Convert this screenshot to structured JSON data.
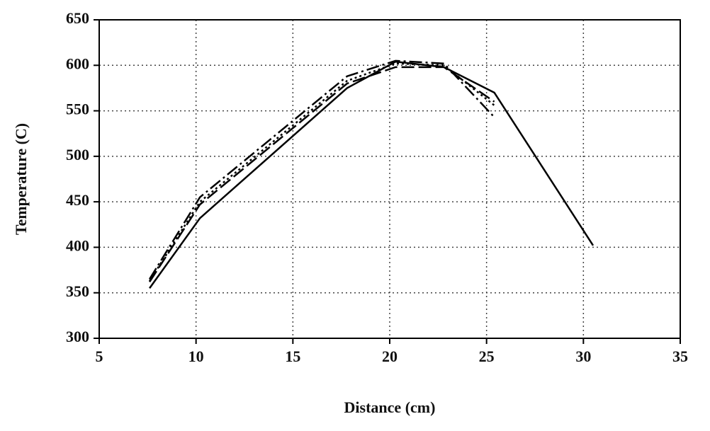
{
  "chart_data": {
    "type": "line",
    "x_label": "Distance (cm)",
    "y_label": "Temperature (C)",
    "series": [
      {
        "color": "#000000",
        "dash": "solid",
        "x": [
          7.6,
          10.2,
          17.8,
          20.3,
          22.8,
          25.4,
          30.5
        ],
        "values": [
          355,
          432,
          575,
          604,
          598,
          570,
          402
        ]
      },
      {
        "color": "#000000",
        "dash": "dashed",
        "x": [
          7.6,
          10.2,
          17.8,
          20.3,
          22.8,
          25.4
        ],
        "values": [
          362,
          447,
          580,
          598,
          598,
          560
        ]
      },
      {
        "color": "#000000",
        "dash": "dashdot",
        "x": [
          7.6,
          10.2,
          17.8,
          20.3,
          22.8,
          25.4
        ],
        "values": [
          365,
          455,
          588,
          605,
          602,
          543
        ]
      },
      {
        "color": "#000000",
        "dash": "dotted",
        "x": [
          7.6,
          10.2,
          17.8,
          20.3,
          22.8,
          25.4
        ],
        "values": [
          363,
          450,
          583,
          602,
          600,
          556
        ]
      }
    ],
    "xlim": [
      5,
      35
    ],
    "xticks": [
      5,
      10,
      15,
      20,
      25,
      30,
      35
    ],
    "ylim": [
      300,
      650
    ],
    "yticks": [
      300,
      350,
      400,
      450,
      500,
      550,
      600,
      650
    ],
    "grid": true
  }
}
